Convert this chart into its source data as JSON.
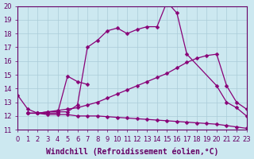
{
  "xlabel": "Windchill (Refroidissement éolien,°C)",
  "xlim": [
    0,
    23
  ],
  "ylim": [
    11,
    20
  ],
  "xticks": [
    0,
    1,
    2,
    3,
    4,
    5,
    6,
    7,
    8,
    9,
    10,
    11,
    12,
    13,
    14,
    15,
    16,
    17,
    18,
    19,
    20,
    21,
    22,
    23
  ],
  "yticks": [
    11,
    12,
    13,
    14,
    15,
    16,
    17,
    18,
    19,
    20
  ],
  "bg_color": "#cce8f0",
  "grid_color": "#aaccd8",
  "line_color": "#880077",
  "font_color": "#660066",
  "tick_fontsize": 6,
  "label_fontsize": 7,
  "markersize": 2.5,
  "linewidth": 0.9,
  "curves": [
    {
      "x": [
        0,
        1,
        2,
        3,
        4,
        5,
        6,
        7,
        8,
        9,
        10,
        11,
        12,
        13,
        14,
        15,
        16,
        17,
        20,
        21,
        22,
        23
      ],
      "y": [
        13.5,
        12.5,
        12.2,
        12.3,
        12.3,
        12.3,
        12.8,
        17.0,
        17.5,
        18.2,
        18.4,
        18.0,
        18.3,
        18.5,
        18.5,
        20.3,
        19.5,
        16.5,
        14.2,
        13.0,
        12.6,
        12.0
      ]
    },
    {
      "x": [
        1,
        2,
        3,
        4,
        5,
        6,
        7
      ],
      "y": [
        12.2,
        12.2,
        12.2,
        12.2,
        14.9,
        14.5,
        14.3
      ]
    },
    {
      "x": [
        1,
        2,
        3,
        4,
        5,
        6,
        7,
        8,
        9,
        10,
        11,
        12,
        13,
        14,
        15,
        16,
        17,
        18,
        19,
        20,
        21,
        22,
        23
      ],
      "y": [
        12.2,
        12.2,
        12.3,
        12.4,
        12.5,
        12.6,
        12.8,
        13.0,
        13.3,
        13.6,
        13.9,
        14.2,
        14.5,
        14.8,
        15.1,
        15.5,
        15.9,
        16.2,
        16.4,
        16.5,
        14.2,
        13.0,
        12.5
      ]
    },
    {
      "x": [
        1,
        2,
        3,
        4,
        5,
        6,
        7,
        8,
        9,
        10,
        11,
        12,
        13,
        14,
        15,
        16,
        17,
        18,
        19,
        20,
        21,
        22,
        23
      ],
      "y": [
        12.2,
        12.2,
        12.1,
        12.1,
        12.1,
        12.0,
        12.0,
        12.0,
        11.95,
        11.9,
        11.85,
        11.8,
        11.75,
        11.7,
        11.65,
        11.6,
        11.55,
        11.5,
        11.45,
        11.4,
        11.3,
        11.2,
        11.1
      ]
    }
  ]
}
